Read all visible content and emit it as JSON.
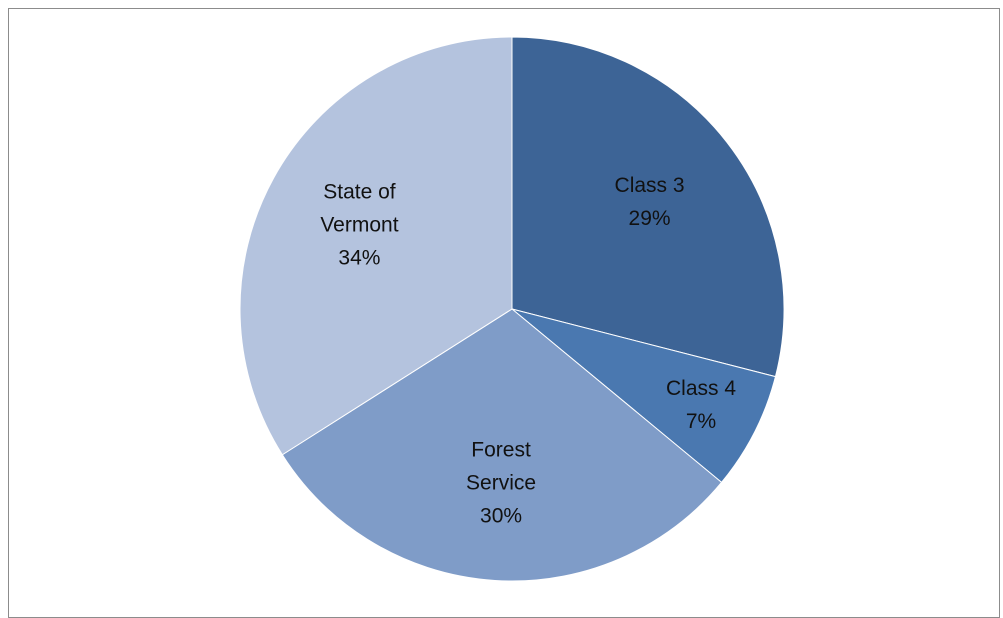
{
  "chart_data": {
    "type": "pie",
    "categories": [
      "Class 3",
      "Class 4",
      "Forest Service",
      "State of Vermont"
    ],
    "values": [
      29,
      7,
      30,
      34
    ],
    "value_labels": [
      "29%",
      "7%",
      "30%",
      "34%"
    ],
    "colors": [
      "#3d6496",
      "#4a78b0",
      "#7f9cc8",
      "#b4c3de"
    ]
  }
}
